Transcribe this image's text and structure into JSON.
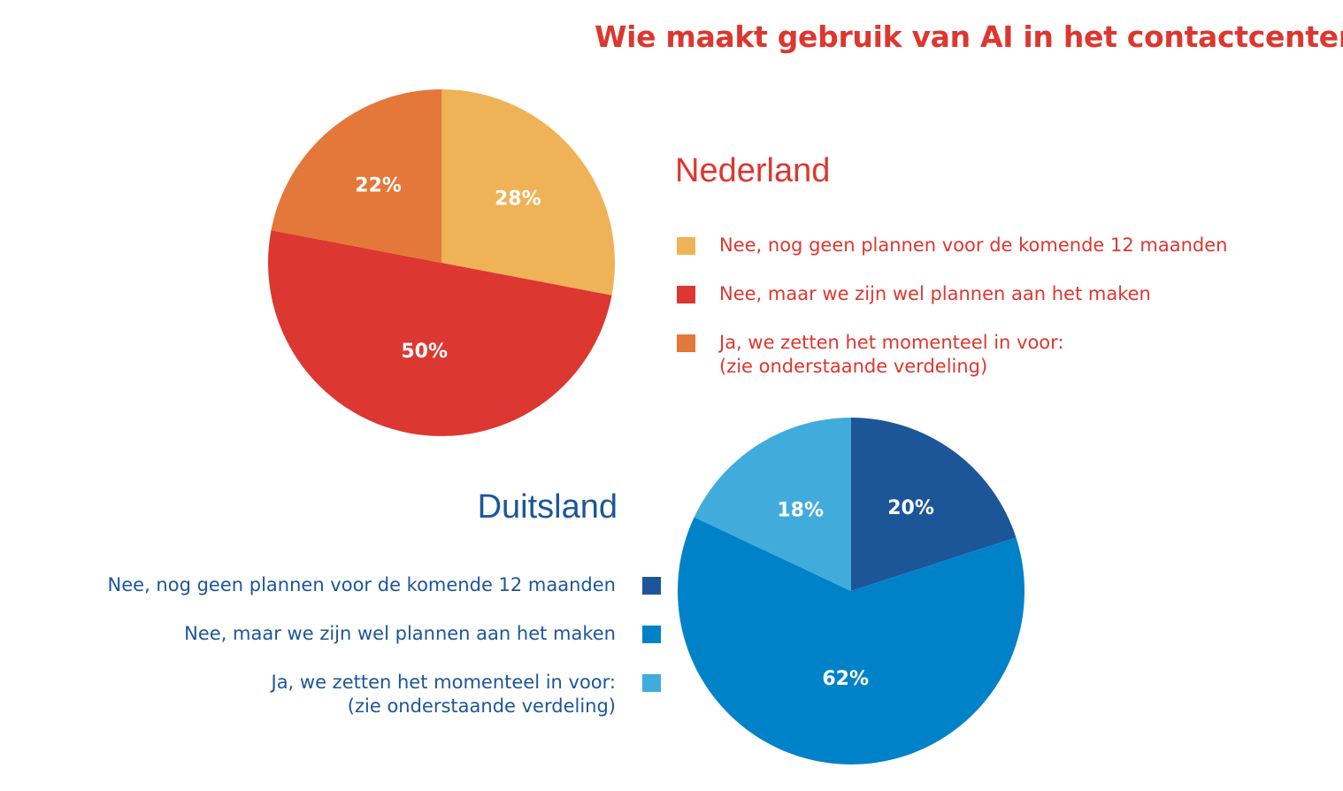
{
  "title": "Wie maakt gebruik van AI in het contactcenter?",
  "chart_data": [
    {
      "type": "pie",
      "title": "Nederland",
      "series": [
        {
          "name": "Nee, nog geen plannen voor de komende 12 maanden",
          "value": 28,
          "label": "28%",
          "color": "#f0b256"
        },
        {
          "name": "Nee, maar we zijn wel plannen aan het maken",
          "value": 50,
          "label": "50%",
          "color": "#dc3730"
        },
        {
          "name": "Ja, we zetten het momenteel in voor:\n(zie onderstaande verdeling)",
          "value": 22,
          "label": "22%",
          "color": "#e4773a"
        }
      ],
      "legend": "right"
    },
    {
      "type": "pie",
      "title": "Duitsland",
      "series": [
        {
          "name": "Nee, nog geen plannen voor de komende 12 maanden",
          "value": 20,
          "label": "20%",
          "color": "#1c5698"
        },
        {
          "name": "Nee, maar we zijn wel plannen aan het maken",
          "value": 62,
          "label": "62%",
          "color": "#0082c8"
        },
        {
          "name": "Ja, we zetten het momenteel in voor:\n(zie onderstaande verdeling)",
          "value": 18,
          "label": "18%",
          "color": "#41acdc"
        }
      ],
      "legend": "left"
    }
  ]
}
